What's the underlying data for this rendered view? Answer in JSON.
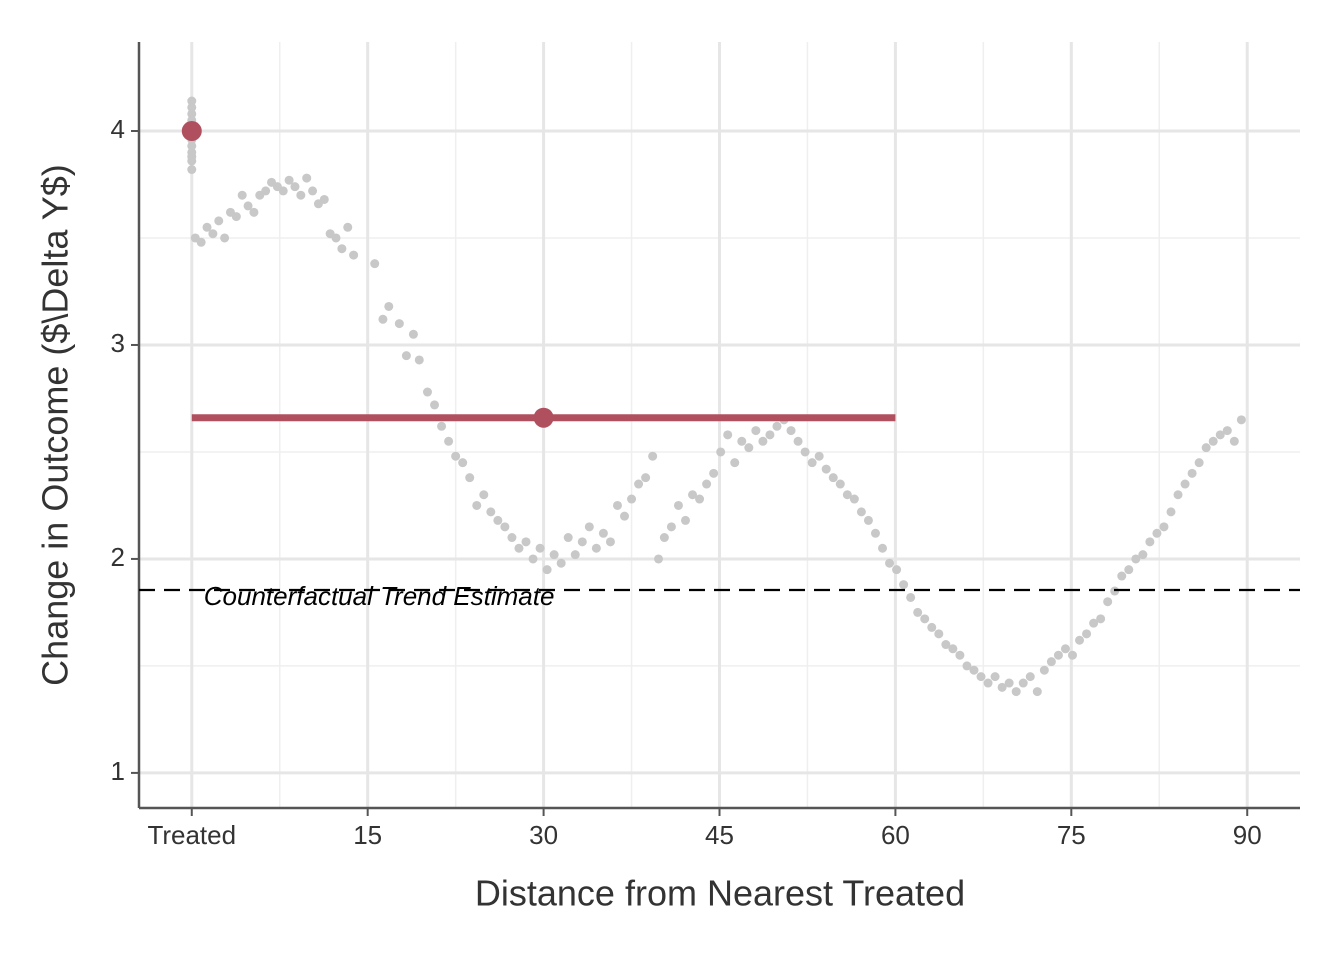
{
  "chart_data": {
    "type": "scatter",
    "x_label": "Distance from Nearest Treated",
    "y_label": "Change in Outcome ($\\Delta Y$)",
    "xlim": [
      -4.5,
      94.5
    ],
    "ylim": [
      0.836,
      4.416
    ],
    "xticks": [
      {
        "value": 0,
        "label": "Treated"
      },
      15,
      30,
      45,
      60,
      75,
      90
    ],
    "yticks": [
      1,
      2,
      3,
      4
    ],
    "x_minor_grid": [
      7.5,
      22.5,
      37.5,
      52.5,
      67.5,
      82.5
    ],
    "y_minor_grid": [
      1.5,
      2.5,
      3.5
    ],
    "grid": true,
    "series": [
      {
        "color": "#c8c8c8",
        "x": [
          0.3,
          0.8,
          1.3,
          1.8,
          2.3,
          2.8,
          3.3,
          3.8,
          4.3,
          4.8,
          5.3,
          5.8,
          6.3,
          6.8,
          7.3,
          7.8,
          8.3,
          8.8,
          9.3,
          9.8,
          10.3,
          10.8,
          11.3,
          11.8,
          12.3,
          12.8,
          13.3,
          13.8,
          15.6,
          16.3,
          16.8,
          17.7,
          18.3,
          18.9,
          19.4,
          20.1,
          20.7,
          21.3,
          21.9,
          22.5,
          23.1,
          23.7,
          24.3,
          24.9,
          25.5,
          26.1,
          26.7,
          27.3,
          27.9,
          28.5,
          29.1,
          29.7,
          30.3,
          30.9,
          31.5,
          32.1,
          32.7,
          33.3,
          33.9,
          34.5,
          35.1,
          35.7,
          36.3,
          36.9,
          37.5,
          38.1,
          38.7,
          39.3,
          39.8,
          40.3,
          40.9,
          41.5,
          42.1,
          42.7,
          43.3,
          43.9,
          44.5,
          45.1,
          45.7,
          46.3,
          46.9,
          47.5,
          48.1,
          48.7,
          49.3,
          49.9,
          50.5,
          51.1,
          51.7,
          52.3,
          52.9,
          53.5,
          54.1,
          54.7,
          55.3,
          55.9,
          56.5,
          57.1,
          57.7,
          58.3,
          58.9,
          59.5,
          60.1,
          60.7,
          61.3,
          61.9,
          62.5,
          63.1,
          63.7,
          64.3,
          64.9,
          65.5,
          66.1,
          66.7,
          67.3,
          67.9,
          68.5,
          69.1,
          69.7,
          70.3,
          70.9,
          71.5,
          72.1,
          72.7,
          73.3,
          73.9,
          74.5,
          75.1,
          75.7,
          76.3,
          76.9,
          77.5,
          78.1,
          78.7,
          79.3,
          79.9,
          80.5,
          81.1,
          81.7,
          82.3,
          82.9,
          83.5,
          84.1,
          84.7,
          85.3,
          85.9,
          86.5,
          87.1,
          87.7,
          88.3,
          88.9,
          89.5
        ],
        "values": [
          3.5,
          3.48,
          3.55,
          3.52,
          3.58,
          3.5,
          3.62,
          3.6,
          3.7,
          3.65,
          3.62,
          3.7,
          3.72,
          3.76,
          3.74,
          3.72,
          3.77,
          3.74,
          3.7,
          3.78,
          3.72,
          3.66,
          3.68,
          3.52,
          3.5,
          3.45,
          3.55,
          3.42,
          3.38,
          3.12,
          3.18,
          3.1,
          2.95,
          3.05,
          2.93,
          2.78,
          2.72,
          2.62,
          2.55,
          2.48,
          2.45,
          2.38,
          2.25,
          2.3,
          2.22,
          2.18,
          2.15,
          2.1,
          2.05,
          2.08,
          2.0,
          2.05,
          1.95,
          2.02,
          1.98,
          2.1,
          2.02,
          2.08,
          2.15,
          2.05,
          2.12,
          2.08,
          2.25,
          2.2,
          2.28,
          2.35,
          2.38,
          2.48,
          2.0,
          2.1,
          2.15,
          2.25,
          2.18,
          2.3,
          2.28,
          2.35,
          2.4,
          2.5,
          2.58,
          2.45,
          2.55,
          2.52,
          2.6,
          2.55,
          2.58,
          2.62,
          2.65,
          2.6,
          2.55,
          2.5,
          2.45,
          2.48,
          2.42,
          2.38,
          2.35,
          2.3,
          2.28,
          2.22,
          2.18,
          2.12,
          2.05,
          1.98,
          1.95,
          1.88,
          1.82,
          1.75,
          1.72,
          1.68,
          1.65,
          1.6,
          1.58,
          1.55,
          1.5,
          1.48,
          1.45,
          1.42,
          1.45,
          1.4,
          1.42,
          1.38,
          1.42,
          1.45,
          1.38,
          1.48,
          1.52,
          1.55,
          1.58,
          1.55,
          1.62,
          1.65,
          1.7,
          1.72,
          1.8,
          1.85,
          1.92,
          1.95,
          2.0,
          2.02,
          2.08,
          2.12,
          2.15,
          2.22,
          2.3,
          2.35,
          2.4,
          2.45,
          2.52,
          2.55,
          2.58,
          2.6,
          2.55,
          2.65
        ]
      },
      {
        "color": "#c8c8c8",
        "x": [
          0,
          0,
          0,
          0,
          0,
          0,
          0,
          0,
          0,
          0,
          0,
          0
        ],
        "values": [
          3.82,
          3.86,
          3.9,
          3.93,
          3.96,
          3.99,
          4.02,
          4.05,
          4.08,
          4.11,
          4.14,
          3.88
        ]
      }
    ],
    "highlight_color": "#b0505f",
    "highlight_segment": {
      "x": [
        0,
        60
      ],
      "values": [
        2.66,
        2.66
      ]
    },
    "highlight_points": {
      "x": [
        0,
        30
      ],
      "values": [
        4.0,
        2.66
      ]
    },
    "reference_line": {
      "value": 1.855,
      "label": "Counterfactual Trend Estimate"
    }
  }
}
